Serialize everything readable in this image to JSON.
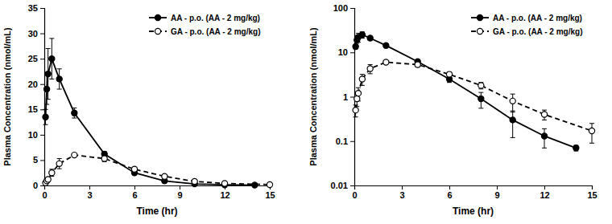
{
  "chart_data": [
    {
      "type": "line",
      "x_label": "Time (hr)",
      "y_label": "Plasma Concentration (nmol/mL)",
      "xlim": [
        0,
        15
      ],
      "xticks": [
        0,
        3,
        6,
        9,
        12,
        15
      ],
      "ylim": [
        0,
        35
      ],
      "yticks": [
        0,
        5,
        10,
        15,
        20,
        25,
        30,
        35
      ],
      "grid": false,
      "legend": "upper right",
      "series": [
        {
          "name": "AA - p.o. (AA - 2 mg/kg)",
          "color": "#000000",
          "marker": "circle",
          "line_style": "solid",
          "x": [
            0.083,
            0.167,
            0.25,
            0.5,
            1,
            2,
            4,
            6,
            8,
            10,
            12,
            14
          ],
          "values": [
            13.5,
            19,
            22,
            25,
            21,
            14.3,
            6.2,
            2.5,
            0.9,
            0.3,
            0.13,
            0.07
          ],
          "errors": [
            1.5,
            3,
            5,
            4,
            2,
            1,
            0.5,
            0.4,
            0.35,
            0.18,
            0.06,
            0.01
          ]
        },
        {
          "name": "GA - p.o. (AA - 2 mg/kg)",
          "color": "#000000",
          "marker": "open circle",
          "line_style": "dashed",
          "x": [
            0.083,
            0.167,
            0.25,
            0.5,
            1,
            2,
            4,
            6,
            8,
            10,
            12,
            15
          ],
          "values": [
            0.5,
            0.9,
            1.2,
            2.5,
            4.3,
            6,
            5.3,
            3.2,
            1.8,
            0.8,
            0.4,
            0.17
          ],
          "errors": [
            0.15,
            0.3,
            0.4,
            0.7,
            1,
            0.3,
            0.6,
            0.4,
            0.3,
            0.35,
            0.1,
            0.08
          ]
        }
      ]
    },
    {
      "type": "line",
      "x_label": "Time (hr)",
      "y_label": "Plasma Concentration (nmol/mL)",
      "xlim": [
        0,
        15
      ],
      "xticks": [
        0,
        3,
        6,
        9,
        12,
        15
      ],
      "log": "y",
      "ylim": [
        0.01,
        100
      ],
      "yticks": [
        0.01,
        0.1,
        1,
        10,
        100
      ],
      "grid": false,
      "legend": "upper right",
      "series": [
        {
          "name": "AA - p.o. (AA - 2 mg/kg)",
          "color": "#000000",
          "marker": "circle",
          "line_style": "solid",
          "x": [
            0.083,
            0.167,
            0.25,
            0.5,
            1,
            2,
            4,
            6,
            8,
            10,
            12,
            14
          ],
          "values": [
            13.5,
            19,
            22,
            25,
            21,
            14.3,
            6.2,
            2.5,
            0.9,
            0.3,
            0.13,
            0.07
          ],
          "errors": [
            1.5,
            3,
            5,
            4,
            2,
            1,
            0.5,
            0.4,
            0.35,
            0.18,
            0.06,
            0.01
          ]
        },
        {
          "name": "GA - p.o. (AA - 2 mg/kg)",
          "color": "#000000",
          "marker": "open circle",
          "line_style": "dashed",
          "x": [
            0.083,
            0.167,
            0.25,
            0.5,
            1,
            2,
            4,
            6,
            8,
            10,
            12,
            15
          ],
          "values": [
            0.5,
            0.9,
            1.2,
            2.5,
            4.3,
            6,
            5.3,
            3.2,
            1.8,
            0.8,
            0.4,
            0.17
          ],
          "errors": [
            0.15,
            0.3,
            0.4,
            0.7,
            1,
            0.3,
            0.6,
            0.4,
            0.3,
            0.35,
            0.1,
            0.08
          ]
        }
      ]
    }
  ]
}
